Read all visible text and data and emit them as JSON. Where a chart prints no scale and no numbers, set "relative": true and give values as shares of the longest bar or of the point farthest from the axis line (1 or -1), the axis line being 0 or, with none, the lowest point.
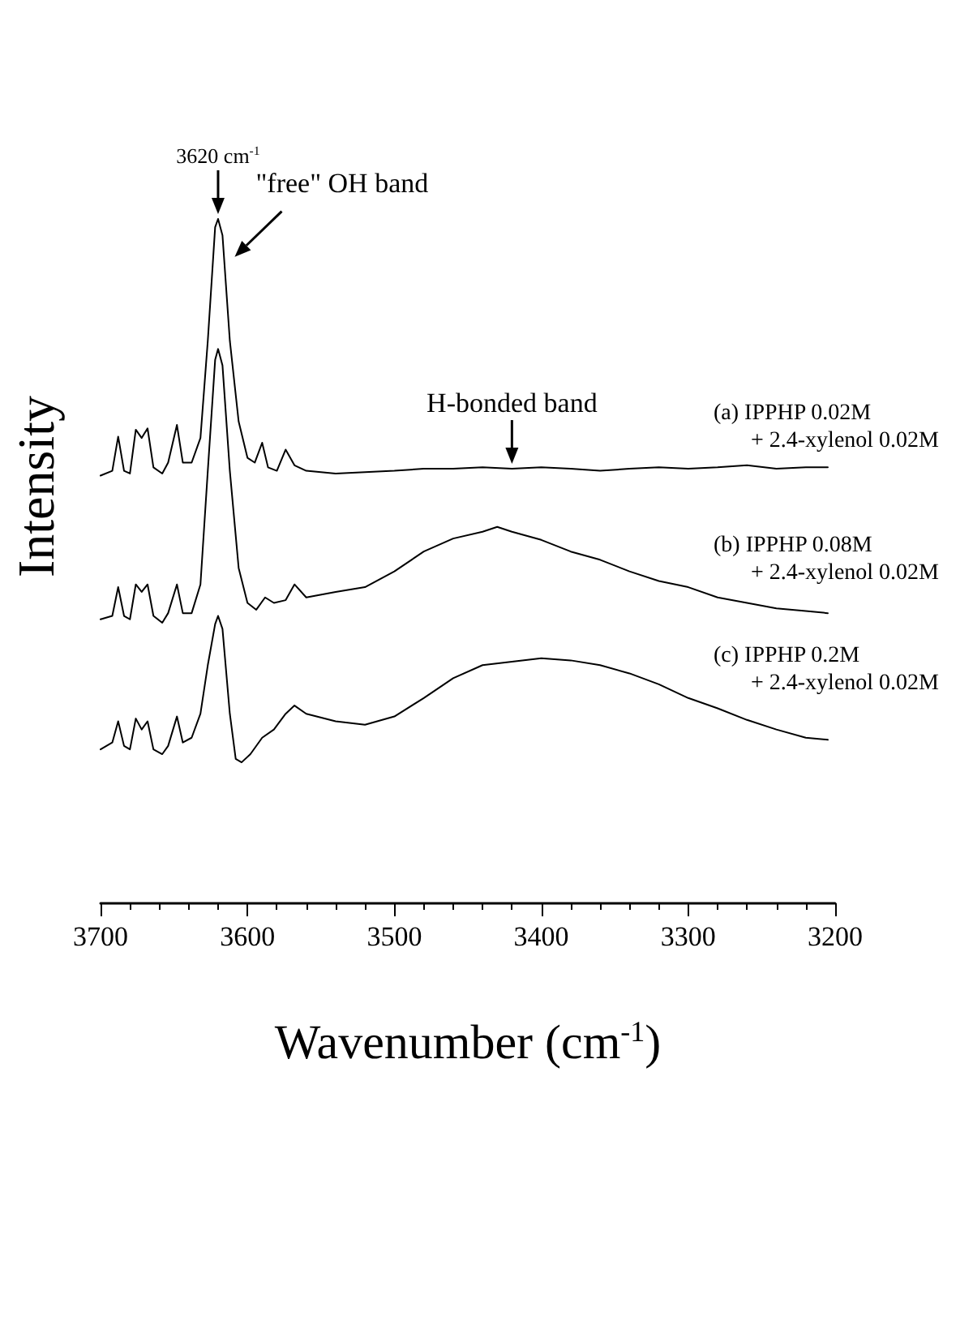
{
  "chart_data": {
    "type": "line",
    "relative": true,
    "xlabel": "Wavenumber (cm$^{-1}$)",
    "ylabel": "Intensity",
    "xlim": [
      3700,
      3200
    ],
    "xticks": [
      3700,
      3600,
      3500,
      3400,
      3300,
      3200
    ],
    "tick_labels": "x",
    "grid": false,
    "legend": false,
    "marker": "none",
    "line_style": "solid",
    "annotations": [
      {
        "text": "3620 cm$^{-1}$",
        "x": 3620,
        "y": 1.0
      },
      {
        "text": "\"free\" OH band",
        "x": 3612,
        "y": 0.921
      },
      {
        "text": "H-bonded band",
        "x": 3420,
        "y": 0.635
      }
    ],
    "series": [
      {
        "name": "(a) IPPHP 0.02M\n+ 2.4-xylenol 0.02M",
        "color": "#000000",
        "x": [
          3700,
          3692,
          3688,
          3684,
          3680,
          3676,
          3672,
          3668,
          3664,
          3658,
          3654,
          3648,
          3644,
          3638,
          3632,
          3627,
          3622,
          3620,
          3617,
          3612,
          3606,
          3600,
          3595,
          3590,
          3586,
          3580,
          3574,
          3568,
          3560,
          3540,
          3520,
          3500,
          3480,
          3460,
          3440,
          3420,
          3400,
          3380,
          3360,
          3340,
          3320,
          3300,
          3280,
          3260,
          3240,
          3220,
          3205
        ],
        "values": [
          0.625,
          0.632,
          0.682,
          0.632,
          0.628,
          0.692,
          0.68,
          0.694,
          0.637,
          0.628,
          0.644,
          0.699,
          0.644,
          0.644,
          0.68,
          0.822,
          0.988,
          1.0,
          0.976,
          0.822,
          0.704,
          0.651,
          0.644,
          0.673,
          0.637,
          0.632,
          0.663,
          0.64,
          0.632,
          0.628,
          0.63,
          0.632,
          0.635,
          0.635,
          0.637,
          0.635,
          0.637,
          0.635,
          0.632,
          0.635,
          0.637,
          0.635,
          0.637,
          0.64,
          0.635,
          0.637,
          0.637
        ]
      },
      {
        "name": "(b) IPPHP 0.08M\n+ 2.4-xylenol 0.02M",
        "color": "#000000",
        "x": [
          3700,
          3692,
          3688,
          3684,
          3680,
          3676,
          3672,
          3668,
          3664,
          3658,
          3654,
          3648,
          3644,
          3638,
          3632,
          3627,
          3622,
          3620,
          3617,
          3612,
          3606,
          3600,
          3594,
          3588,
          3582,
          3574,
          3568,
          3560,
          3540,
          3520,
          3500,
          3480,
          3460,
          3440,
          3430,
          3420,
          3400,
          3380,
          3360,
          3340,
          3320,
          3300,
          3280,
          3260,
          3240,
          3220,
          3205
        ],
        "values": [
          0.415,
          0.42,
          0.462,
          0.42,
          0.415,
          0.466,
          0.455,
          0.466,
          0.42,
          0.41,
          0.424,
          0.466,
          0.424,
          0.424,
          0.466,
          0.632,
          0.794,
          0.81,
          0.786,
          0.632,
          0.49,
          0.439,
          0.429,
          0.447,
          0.439,
          0.443,
          0.466,
          0.447,
          0.455,
          0.462,
          0.485,
          0.514,
          0.533,
          0.543,
          0.55,
          0.543,
          0.531,
          0.514,
          0.502,
          0.485,
          0.471,
          0.462,
          0.447,
          0.439,
          0.431,
          0.427,
          0.424
        ]
      },
      {
        "name": "(c) IPPHP 0.2M\n+ 2.4-xylenol 0.02M",
        "color": "#000000",
        "x": [
          3700,
          3692,
          3688,
          3684,
          3680,
          3676,
          3672,
          3668,
          3664,
          3658,
          3654,
          3648,
          3644,
          3638,
          3632,
          3627,
          3622,
          3620,
          3617,
          3612,
          3608,
          3604,
          3598,
          3590,
          3582,
          3574,
          3568,
          3560,
          3540,
          3520,
          3500,
          3480,
          3460,
          3440,
          3420,
          3400,
          3380,
          3360,
          3340,
          3320,
          3300,
          3280,
          3260,
          3240,
          3220,
          3205
        ],
        "values": [
          0.225,
          0.235,
          0.266,
          0.23,
          0.225,
          0.27,
          0.254,
          0.266,
          0.225,
          0.218,
          0.23,
          0.273,
          0.235,
          0.242,
          0.277,
          0.348,
          0.408,
          0.42,
          0.401,
          0.277,
          0.211,
          0.206,
          0.218,
          0.242,
          0.254,
          0.277,
          0.289,
          0.277,
          0.266,
          0.261,
          0.273,
          0.3,
          0.329,
          0.348,
          0.353,
          0.358,
          0.355,
          0.348,
          0.336,
          0.32,
          0.3,
          0.285,
          0.268,
          0.254,
          0.242,
          0.239
        ]
      }
    ]
  }
}
